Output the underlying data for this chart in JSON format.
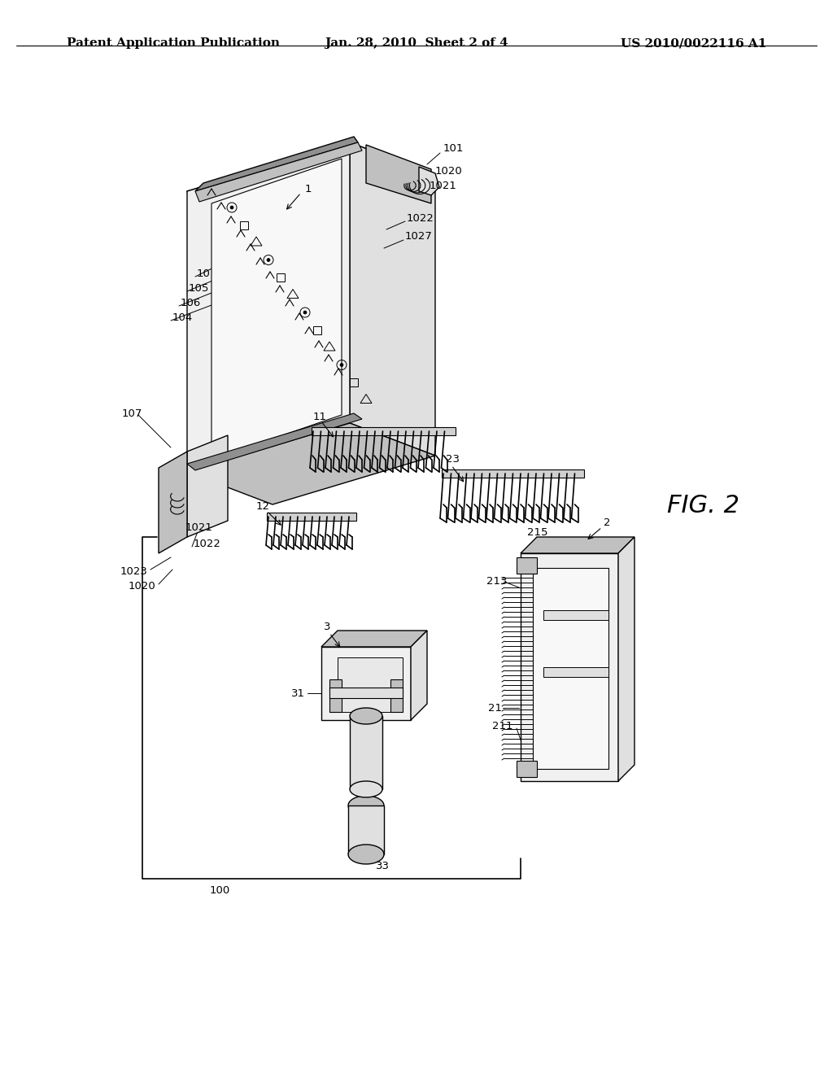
{
  "background_color": "#ffffff",
  "header_left": "Patent Application Publication",
  "header_center": "Jan. 28, 2010  Sheet 2 of 4",
  "header_right": "US 2010/0022116 A1",
  "figure_label": "FIG. 2",
  "header_fontsize": 11,
  "label_fontsize": 9.5,
  "line_color": "#000000",
  "line_width": 1.0,
  "gray_light": "#e0e0e0",
  "gray_mid": "#c0c0c0",
  "gray_dark": "#909090"
}
